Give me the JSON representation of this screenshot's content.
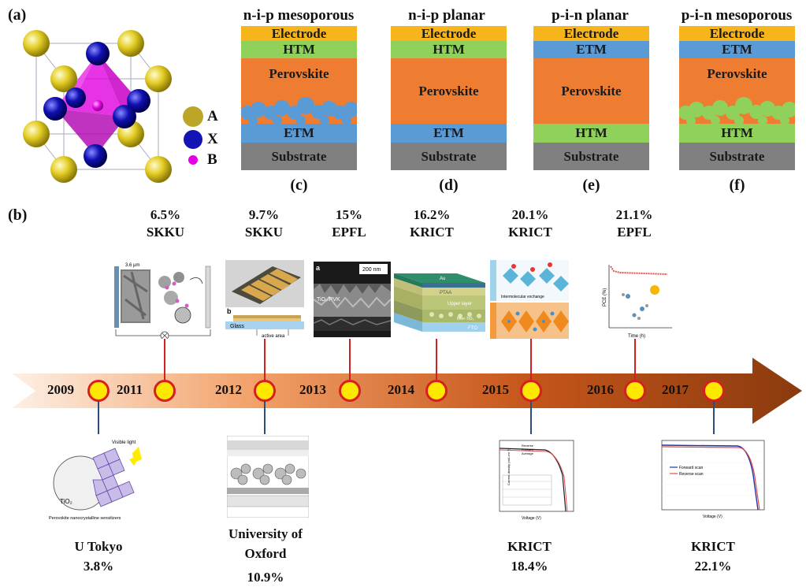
{
  "panel_labels": {
    "a": "(a)",
    "b": "(b)"
  },
  "crystal": {
    "legend": [
      {
        "label": "A",
        "color": "#bca62a"
      },
      {
        "label": "X",
        "color": "#1414b4"
      },
      {
        "label": "B",
        "color": "#e600e6"
      }
    ]
  },
  "stacks": [
    {
      "title": "n-i-p mesoporous",
      "letter": "(c)",
      "layers": [
        "Electrode",
        "HTM",
        "Perovskite",
        "ETM",
        "Substrate"
      ]
    },
    {
      "title": "n-i-p planar",
      "letter": "(d)",
      "layers": [
        "Electrode",
        "HTM",
        "Perovskite",
        "ETM",
        "Substrate"
      ]
    },
    {
      "title": "p-i-n planar",
      "letter": "(e)",
      "layers": [
        "Electrode",
        "ETM",
        "Perovskite",
        "HTM",
        "Substrate"
      ]
    },
    {
      "title": "p-i-n mesoporous",
      "letter": "(f)",
      "layers": [
        "Electrode",
        "ETM",
        "Perovskite",
        "HTM",
        "Substrate"
      ]
    }
  ],
  "colors": {
    "Electrode": "#f7b51c",
    "HTM": "#8fd15a",
    "ETM": "#5b9bd5",
    "Perovskite": "#ee7d31",
    "Substrate": "#808080",
    "dot_fill": "#ffe800",
    "dot_ring": "#d81f1f"
  },
  "timeline": {
    "years": [
      "2009",
      "2011",
      "2012",
      "2013",
      "2014",
      "2015",
      "2016",
      "2017"
    ],
    "top_milestones": [
      {
        "efficiency": "6.5%",
        "institution": "SKKU"
      },
      {
        "efficiency": "9.7%",
        "institution": "SKKU"
      },
      {
        "efficiency": "15%",
        "institution": "EPFL"
      },
      {
        "efficiency": "16.2%",
        "institution": "KRICT"
      },
      {
        "efficiency": "20.1%",
        "institution": "KRICT"
      },
      {
        "efficiency": "21.1%",
        "institution": "EPFL"
      }
    ],
    "bottom_milestones": [
      {
        "institution": "U Tokyo",
        "efficiency": "3.8%"
      },
      {
        "institution": "University of Oxford",
        "efficiency": "10.9%"
      },
      {
        "institution": "KRICT",
        "efficiency": "18.4%"
      },
      {
        "institution": "KRICT",
        "efficiency": "22.1%"
      }
    ]
  },
  "thumb_text": {
    "scale_36um": "3.6 μm",
    "b_label": "b",
    "glass": "Glass",
    "active_area": "active area",
    "a_label": "a",
    "scale_200nm": "200 nm",
    "tio2_pvk": "TiO₂/PVK",
    "au": "Au",
    "ptaa": "PTAA",
    "upper_layer": "Upper layer",
    "inter_tio2": "Inter-TiO₂",
    "fto": "FTO",
    "intermolecular": "Intermolecular exchange",
    "pce_axis": "PCE (%)",
    "time_axis": "Time (h)",
    "visible_light": "Visible light",
    "tio2": "TiO₂",
    "sensitizer_caption": "Perovskite nanocrystalline sensitizers",
    "reverse": "Reverse",
    "forward": "Forward",
    "average": "Average",
    "forward_scan": "Forward scan",
    "reverse_scan": "Reverse scan",
    "voltage": "Voltage (V)",
    "current_density": "Current density (mA cm⁻²)"
  }
}
